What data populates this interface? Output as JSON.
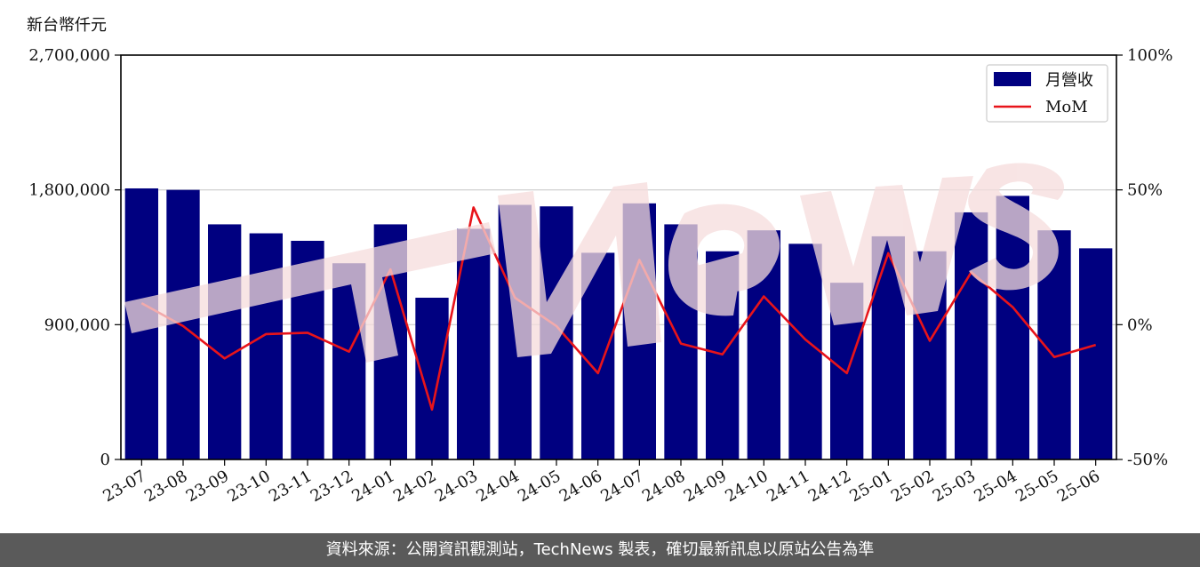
{
  "unit_label": "新台幣仟元",
  "footer_text": "資料來源：公開資訊觀測站，TechNews 製表，確切最新訊息以原站公告為準",
  "colors": {
    "bar": "#000080",
    "line": "#e8141a",
    "grid": "#cccccc",
    "footer_bg": "#5a5a5a",
    "watermark": "#f6d8d8"
  },
  "chart_data": {
    "type": "bar",
    "title": "",
    "xlabel": "",
    "ylabel": "新台幣仟元",
    "categories": [
      "23-07",
      "23-08",
      "23-09",
      "23-10",
      "23-11",
      "23-12",
      "24-01",
      "24-02",
      "24-03",
      "24-04",
      "24-05",
      "24-06",
      "24-07",
      "24-08",
      "24-09",
      "24-10",
      "24-11",
      "24-12",
      "25-01",
      "25-02",
      "25-03",
      "25-04",
      "25-05",
      "25-06"
    ],
    "series": [
      {
        "name": "月營收",
        "type": "bar",
        "axis": "left",
        "values": [
          1810000,
          1800000,
          1570000,
          1510000,
          1460000,
          1310000,
          1570000,
          1080000,
          1540000,
          1700000,
          1690000,
          1380000,
          1710000,
          1570000,
          1390000,
          1530000,
          1440000,
          1180000,
          1490000,
          1390000,
          1650000,
          1760000,
          1530000,
          1410000
        ]
      },
      {
        "name": "MoM",
        "type": "line",
        "axis": "right",
        "values": [
          8.0,
          -0.5,
          -12.5,
          -3.5,
          -3.0,
          -10.0,
          20.5,
          -31.5,
          43.5,
          10.0,
          -0.5,
          -18.0,
          24.0,
          -7.0,
          -11.0,
          10.5,
          -5.5,
          -18.0,
          26.5,
          -6.0,
          19.5,
          6.5,
          -12.0,
          -7.5
        ]
      }
    ],
    "y_left": {
      "ylim": [
        0,
        2700000
      ],
      "ticks": [
        "0",
        "900,000",
        "1,800,000",
        "2,700,000"
      ]
    },
    "y_right": {
      "ylim": [
        -50,
        100
      ],
      "ticks": [
        "-50%",
        "0%",
        "50%",
        "100%"
      ]
    },
    "grid": "horizontal",
    "legend": {
      "placement": "top-right",
      "entries": [
        "月營收",
        "MoM"
      ]
    }
  }
}
